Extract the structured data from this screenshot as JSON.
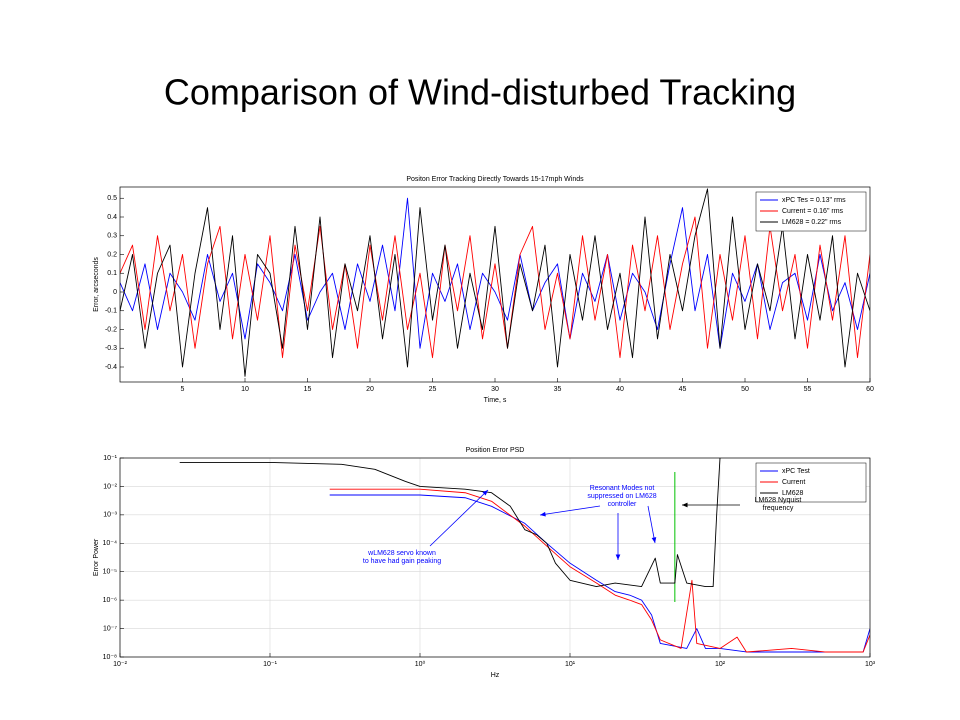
{
  "title": "Comparison of Wind-disturbed Tracking",
  "chart_data": [
    {
      "type": "line",
      "title": "Positon Error Tracking Directly Towards 15-17mph Winds",
      "xlabel": "Time, s",
      "ylabel": "Error, arcseconds",
      "xlim": [
        0,
        60
      ],
      "xticks": [
        5,
        10,
        15,
        20,
        25,
        30,
        35,
        40,
        45,
        50,
        55,
        60
      ],
      "ylim": [
        -0.48,
        0.56
      ],
      "yticks": [
        -0.4,
        -0.3,
        -0.2,
        -0.1,
        0,
        0.1,
        0.2,
        0.3,
        0.4,
        0.5
      ],
      "grid": false,
      "legend": "upper right",
      "x": [
        0,
        1,
        2,
        3,
        4,
        5,
        6,
        7,
        8,
        9,
        10,
        11,
        12,
        13,
        14,
        15,
        16,
        17,
        18,
        19,
        20,
        21,
        22,
        23,
        24,
        25,
        26,
        27,
        28,
        29,
        30,
        31,
        32,
        33,
        34,
        35,
        36,
        37,
        38,
        39,
        40,
        41,
        42,
        43,
        44,
        45,
        46,
        47,
        48,
        49,
        50,
        51,
        52,
        53,
        54,
        55,
        56,
        57,
        58,
        59,
        60
      ],
      "series": [
        {
          "name": "xPC Tes = 0.13\" rms",
          "color": "#0000ff",
          "values": [
            0.05,
            -0.1,
            0.15,
            -0.2,
            0.1,
            0.0,
            -0.15,
            0.2,
            -0.05,
            0.1,
            -0.25,
            0.15,
            0.05,
            -0.1,
            0.2,
            -0.15,
            0.0,
            0.1,
            -0.2,
            0.15,
            -0.05,
            0.25,
            -0.1,
            0.5,
            -0.3,
            0.1,
            -0.05,
            0.15,
            -0.2,
            0.1,
            0.0,
            -0.15,
            0.2,
            -0.1,
            0.05,
            0.15,
            -0.25,
            0.1,
            -0.05,
            0.2,
            -0.15,
            0.1,
            0.0,
            -0.2,
            0.15,
            0.45,
            -0.1,
            0.2,
            -0.3,
            0.1,
            -0.05,
            0.15,
            -0.2,
            0.05,
            0.1,
            -0.15,
            0.2,
            -0.1,
            0.05,
            -0.2,
            0.1
          ]
        },
        {
          "name": "Current =  0.16\" rms",
          "color": "#ff0000",
          "values": [
            0.1,
            0.25,
            -0.2,
            0.3,
            -0.1,
            0.2,
            -0.3,
            0.15,
            0.35,
            -0.25,
            0.2,
            -0.15,
            0.3,
            -0.35,
            0.25,
            -0.1,
            0.35,
            -0.2,
            0.15,
            -0.3,
            0.25,
            -0.15,
            0.3,
            -0.2,
            0.1,
            -0.35,
            0.25,
            -0.1,
            0.3,
            -0.25,
            0.15,
            -0.3,
            0.2,
            0.35,
            -0.2,
            0.1,
            -0.25,
            0.3,
            -0.15,
            0.2,
            -0.35,
            0.25,
            -0.1,
            0.3,
            -0.2,
            0.15,
            0.4,
            -0.3,
            0.2,
            -0.15,
            0.3,
            -0.25,
            0.35,
            -0.1,
            0.2,
            -0.3,
            0.25,
            -0.15,
            0.3,
            -0.35,
            0.2
          ]
        },
        {
          "name": "LM628 = 0.22\" rms",
          "color": "#000000",
          "values": [
            -0.1,
            0.2,
            -0.3,
            0.1,
            0.25,
            -0.4,
            0.1,
            0.45,
            -0.2,
            0.3,
            -0.45,
            0.2,
            0.1,
            -0.3,
            0.35,
            -0.2,
            0.4,
            -0.35,
            0.15,
            -0.1,
            0.3,
            -0.25,
            0.2,
            -0.4,
            0.45,
            -0.15,
            0.25,
            -0.3,
            0.1,
            -0.2,
            0.35,
            -0.3,
            0.15,
            -0.1,
            0.25,
            -0.4,
            0.2,
            -0.15,
            0.3,
            -0.2,
            0.1,
            -0.35,
            0.4,
            -0.25,
            0.2,
            -0.1,
            0.3,
            0.55,
            -0.3,
            0.4,
            -0.2,
            0.15,
            -0.1,
            0.35,
            -0.25,
            0.2,
            -0.15,
            0.3,
            -0.4,
            0.1,
            -0.1
          ]
        }
      ]
    },
    {
      "type": "line",
      "title": "Position Error PSD",
      "xlabel": "Hz",
      "ylabel": "Error Power",
      "xscale": "log",
      "yscale": "log",
      "xlim": [
        0.01,
        1000
      ],
      "xticks": [
        {
          "value": 0.01,
          "label": "10⁻²"
        },
        {
          "value": 0.1,
          "label": "10⁻¹"
        },
        {
          "value": 1,
          "label": "10⁰"
        },
        {
          "value": 10,
          "label": "10¹"
        },
        {
          "value": 100,
          "label": "10²"
        },
        {
          "value": 1000,
          "label": "10³"
        }
      ],
      "ylim": [
        1e-08,
        0.1
      ],
      "yticks": [
        {
          "value": 1e-08,
          "label": "10⁻⁸"
        },
        {
          "value": 1e-07,
          "label": "10⁻⁷"
        },
        {
          "value": 1e-06,
          "label": "10⁻⁶"
        },
        {
          "value": 1e-05,
          "label": "10⁻⁵"
        },
        {
          "value": 0.0001,
          "label": "10⁻⁴"
        },
        {
          "value": 0.001,
          "label": "10⁻³"
        },
        {
          "value": 0.01,
          "label": "10⁻²"
        },
        {
          "value": 0.1,
          "label": "10⁻¹"
        }
      ],
      "grid": true,
      "legend": "upper right",
      "vline": {
        "x": 50,
        "color": "#00c000"
      },
      "series": [
        {
          "name": "xPC Test",
          "color": "#0000ff",
          "x": [
            0.25,
            1,
            2,
            3,
            5,
            7,
            10,
            15,
            20,
            25,
            30,
            35,
            40,
            60,
            70,
            80,
            100,
            150,
            200,
            500,
            900,
            1000
          ],
          "values": [
            0.005,
            0.005,
            0.004,
            0.002,
            0.0005,
            0.0001,
            2e-05,
            5e-06,
            2e-06,
            1.5e-06,
            1e-06,
            3e-07,
            3e-08,
            2e-08,
            1e-07,
            2e-08,
            2e-08,
            1.5e-08,
            1.5e-08,
            1.5e-08,
            1.5e-08,
            1e-07
          ]
        },
        {
          "name": "Current",
          "color": "#ff0000",
          "x": [
            0.25,
            1,
            2,
            3,
            5,
            7,
            10,
            15,
            20,
            25,
            30,
            35,
            40,
            55,
            65,
            70,
            100,
            130,
            150,
            300,
            500,
            900,
            1000
          ],
          "values": [
            0.008,
            0.008,
            0.006,
            0.003,
            0.0004,
            8e-05,
            1.5e-05,
            4e-06,
            1.5e-06,
            1e-06,
            7e-07,
            2e-07,
            4e-08,
            2e-08,
            5e-06,
            3e-08,
            2e-08,
            5e-08,
            1.5e-08,
            2e-08,
            1.5e-08,
            1.5e-08,
            6e-08
          ]
        },
        {
          "name": "LM628",
          "color": "#000000",
          "x": [
            0.025,
            0.1,
            0.3,
            0.5,
            0.8,
            1,
            2,
            3,
            4,
            5,
            6,
            7,
            8,
            10,
            15,
            20,
            30,
            37,
            40,
            50,
            52,
            60,
            80,
            90,
            95,
            100
          ],
          "values": [
            0.07,
            0.07,
            0.06,
            0.04,
            0.015,
            0.01,
            0.008,
            0.006,
            0.002,
            0.0003,
            0.0002,
            0.0001,
            2e-05,
            5e-06,
            3e-06,
            4e-06,
            3e-06,
            3e-05,
            4e-06,
            4e-06,
            4e-05,
            4e-06,
            3e-06,
            3e-06,
            0.001,
            0.1
          ]
        }
      ],
      "annotations": [
        {
          "lines": [
            "Resonant Modes not",
            "suppressed on LM628",
            "controller"
          ],
          "color": "#0000ff"
        },
        {
          "lines": [
            "LM628 Nyquist",
            "frequency"
          ],
          "color": "#000000"
        },
        {
          "lines": [
            "wLM628 servo known",
            "to have had gain peaking"
          ],
          "color": "#0000ff"
        }
      ]
    }
  ]
}
